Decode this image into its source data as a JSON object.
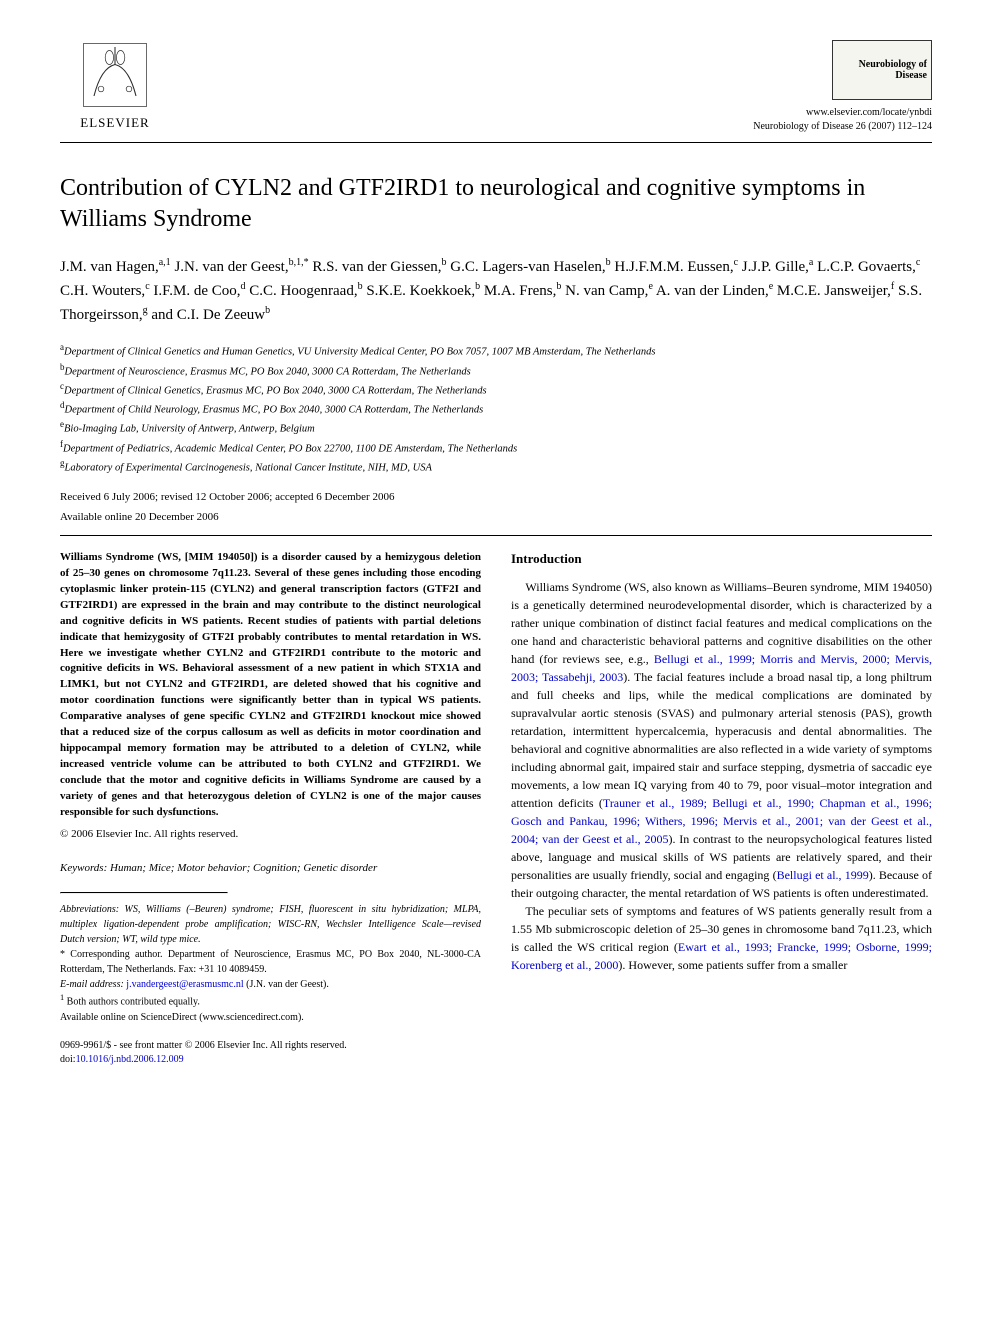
{
  "publisher": {
    "name": "ELSEVIER",
    "logo_stroke": "#2a2a2a"
  },
  "journal": {
    "cover_title": "Neurobiology of Disease",
    "url": "www.elsevier.com/locate/ynbdi",
    "citation": "Neurobiology of Disease 26 (2007) 112–124"
  },
  "title": "Contribution of CYLN2 and GTF2IRD1 to neurological and cognitive symptoms in Williams Syndrome",
  "authors_html": "J.M. van Hagen,<sup>a,1</sup> J.N. van der Geest,<sup>b,1,*</sup> R.S. van der Giessen,<sup>b</sup> G.C. Lagers-van Haselen,<sup>b</sup> H.J.F.M.M. Eussen,<sup>c</sup> J.J.P. Gille,<sup>a</sup> L.C.P. Govaerts,<sup>c</sup> C.H. Wouters,<sup>c</sup> I.F.M. de Coo,<sup>d</sup> C.C. Hoogenraad,<sup>b</sup> S.K.E. Koekkoek,<sup>b</sup> M.A. Frens,<sup>b</sup> N. van Camp,<sup>e</sup> A. van der Linden,<sup>e</sup> M.C.E. Jansweijer,<sup>f</sup> S.S. Thorgeirsson,<sup>g</sup> and C.I. De Zeeuw<sup>b</sup>",
  "affiliations": [
    "<sup>a</sup>Department of Clinical Genetics and Human Genetics, VU University Medical Center, PO Box 7057, 1007 MB Amsterdam, The Netherlands",
    "<sup>b</sup>Department of Neuroscience, Erasmus MC, PO Box 2040, 3000 CA Rotterdam, The Netherlands",
    "<sup>c</sup>Department of Clinical Genetics, Erasmus MC, PO Box 2040, 3000 CA Rotterdam, The Netherlands",
    "<sup>d</sup>Department of Child Neurology, Erasmus MC, PO Box 2040, 3000 CA Rotterdam, The Netherlands",
    "<sup>e</sup>Bio-Imaging Lab, University of Antwerp, Antwerp, Belgium",
    "<sup>f</sup>Department of Pediatrics, Academic Medical Center, PO Box 22700, 1100 DE Amsterdam, The Netherlands",
    "<sup>g</sup>Laboratory of Experimental Carcinogenesis, National Cancer Institute, NIH, MD, USA"
  ],
  "dates": {
    "received": "Received 6 July 2006; revised 12 October 2006; accepted 6 December 2006",
    "online": "Available online 20 December 2006"
  },
  "abstract": "Williams Syndrome (WS, [MIM 194050]) is a disorder caused by a hemizygous deletion of 25–30 genes on chromosome 7q11.23. Several of these genes including those encoding cytoplasmic linker protein-115 (CYLN2) and general transcription factors (GTF2I and GTF2IRD1) are expressed in the brain and may contribute to the distinct neurological and cognitive deficits in WS patients. Recent studies of patients with partial deletions indicate that hemizygosity of GTF2I probably contributes to mental retardation in WS. Here we investigate whether CYLN2 and GTF2IRD1 contribute to the motoric and cognitive deficits in WS. Behavioral assessment of a new patient in which STX1A and LIMK1, but not CYLN2 and GTF2IRD1, are deleted showed that his cognitive and motor coordination functions were significantly better than in typical WS patients. Comparative analyses of gene specific CYLN2 and GTF2IRD1 knockout mice showed that a reduced size of the corpus callosum as well as deficits in motor coordination and hippocampal memory formation may be attributed to a deletion of CYLN2, while increased ventricle volume can be attributed to both CYLN2 and GTF2IRD1. We conclude that the motor and cognitive deficits in Williams Syndrome are caused by a variety of genes and that heterozygous deletion of CYLN2 is one of the major causes responsible for such dysfunctions.",
  "copyright": "© 2006 Elsevier Inc. All rights reserved.",
  "keywords_label": "Keywords:",
  "keywords": "Human; Mice; Motor behavior; Cognition; Genetic disorder",
  "intro_heading": "Introduction",
  "intro_p1_html": "Williams Syndrome (WS, also known as Williams–Beuren syndrome, MIM 194050) is a genetically determined neurodevelopmental disorder, which is characterized by a rather unique combination of distinct facial features and medical complications on the one hand and characteristic behavioral patterns and cognitive disabilities on the other hand (for reviews see, e.g., <span class=\"cite\">Bellugi et al., 1999; Morris and Mervis, 2000; Mervis, 2003; Tassabehji, 2003</span>). The facial features include a broad nasal tip, a long philtrum and full cheeks and lips, while the medical complications are dominated by supravalvular aortic stenosis (SVAS) and pulmonary arterial stenosis (PAS), growth retardation, intermittent hypercalcemia, hyperacusis and dental abnormalities. The behavioral and cognitive abnormalities are also reflected in a wide variety of symptoms including abnormal gait, impaired stair and surface stepping, dysmetria of saccadic eye movements, a low mean IQ varying from 40 to 79, poor visual–motor integration and attention deficits (<span class=\"cite\">Trauner et al., 1989; Bellugi et al., 1990; Chapman et al., 1996; Gosch and Pankau, 1996; Withers, 1996; Mervis et al., 2001; van der Geest et al., 2004; van der Geest et al., 2005</span>). In contrast to the neuropsychological features listed above, language and musical skills of WS patients are relatively spared, and their personalities are usually friendly, social and engaging (<span class=\"cite\">Bellugi et al., 1999</span>). Because of their outgoing character, the mental retardation of WS patients is often underestimated.",
  "intro_p2_html": "The peculiar sets of symptoms and features of WS patients generally result from a 1.55 Mb submicroscopic deletion of 25–30 genes in chromosome band 7q11.23, which is called the WS critical region (<span class=\"cite\">Ewart et al., 1993; Francke, 1999; Osborne, 1999; Korenberg et al., 2000</span>). However, some patients suffer from a smaller",
  "footnotes": {
    "abbrev": "Abbreviations: WS, Williams (–Beuren) syndrome; FISH, fluorescent in situ hybridization; MLPA, multiplex ligation-dependent probe amplification; WISC-RN, Wechsler Intelligence Scale—revised Dutch version; WT, wild type mice.",
    "corresponding": "* Corresponding author. Department of Neuroscience, Erasmus MC, PO Box 2040, NL-3000-CA Rotterdam, The Netherlands. Fax: +31 10 4089459.",
    "email_label": "E-mail address:",
    "email": "j.vandergeest@erasmusmc.nl",
    "email_suffix": "(J.N. van der Geest).",
    "equal": "Both authors contributed equally.",
    "sciencedirect": "Available online on ScienceDirect (www.sciencedirect.com)."
  },
  "footer": {
    "issn": "0969-9961/$ - see front matter © 2006 Elsevier Inc. All rights reserved.",
    "doi_label": "doi:",
    "doi": "10.1016/j.nbd.2006.12.009"
  },
  "colors": {
    "link": "#0000cc",
    "text": "#000000",
    "background": "#ffffff"
  }
}
